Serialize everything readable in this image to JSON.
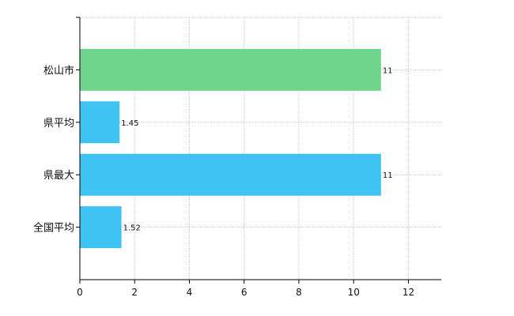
{
  "chart_data": {
    "type": "bar",
    "orientation": "horizontal",
    "categories": [
      "松山市",
      "県平均",
      "県最大",
      "全国平均"
    ],
    "values": [
      11,
      1.45,
      11,
      1.52
    ],
    "data_labels": [
      "11",
      "1.45",
      "11",
      "1.52"
    ],
    "bar_colors": [
      "#6dd58c",
      "#3fc3f3",
      "#3fc3f3",
      "#3fc3f3"
    ],
    "xlim": [
      0,
      13.2
    ],
    "x_ticks": [
      0,
      2,
      4,
      6,
      8,
      10,
      12
    ],
    "x_tick_labels": [
      "0",
      "2",
      "4",
      "6",
      "8",
      "10",
      "12"
    ],
    "grid": true,
    "title": "",
    "xlabel": "",
    "ylabel": ""
  }
}
